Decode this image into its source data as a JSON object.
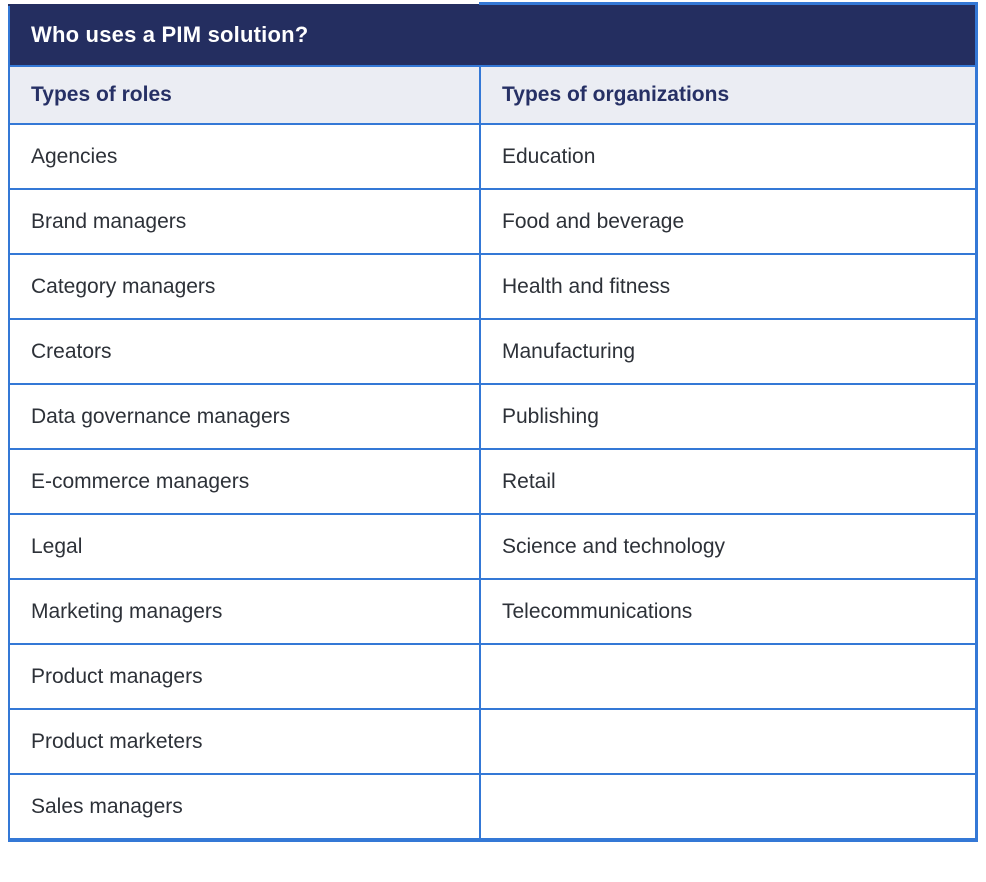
{
  "table": {
    "title": "Who uses a PIM solution?",
    "columns": [
      "Types of roles",
      "Types of organizations"
    ],
    "rows": [
      [
        "Agencies",
        "Education"
      ],
      [
        "Brand managers",
        "Food and beverage"
      ],
      [
        "Category managers",
        "Health and fitness"
      ],
      [
        "Creators",
        "Manufacturing"
      ],
      [
        "Data governance managers",
        "Publishing"
      ],
      [
        "E-commerce managers",
        "Retail"
      ],
      [
        "Legal",
        "Science and technology"
      ],
      [
        "Marketing managers",
        "Telecommunications"
      ],
      [
        "Product managers",
        ""
      ],
      [
        "Product marketers",
        ""
      ],
      [
        "Sales managers",
        ""
      ]
    ],
    "colors": {
      "header_bg": "#242e60",
      "header_text": "#ffffff",
      "subheader_bg": "#ebedf3",
      "subheader_text": "#263065",
      "border": "#3478d6",
      "body_bg": "#ffffff",
      "body_text": "#2d3138"
    }
  }
}
